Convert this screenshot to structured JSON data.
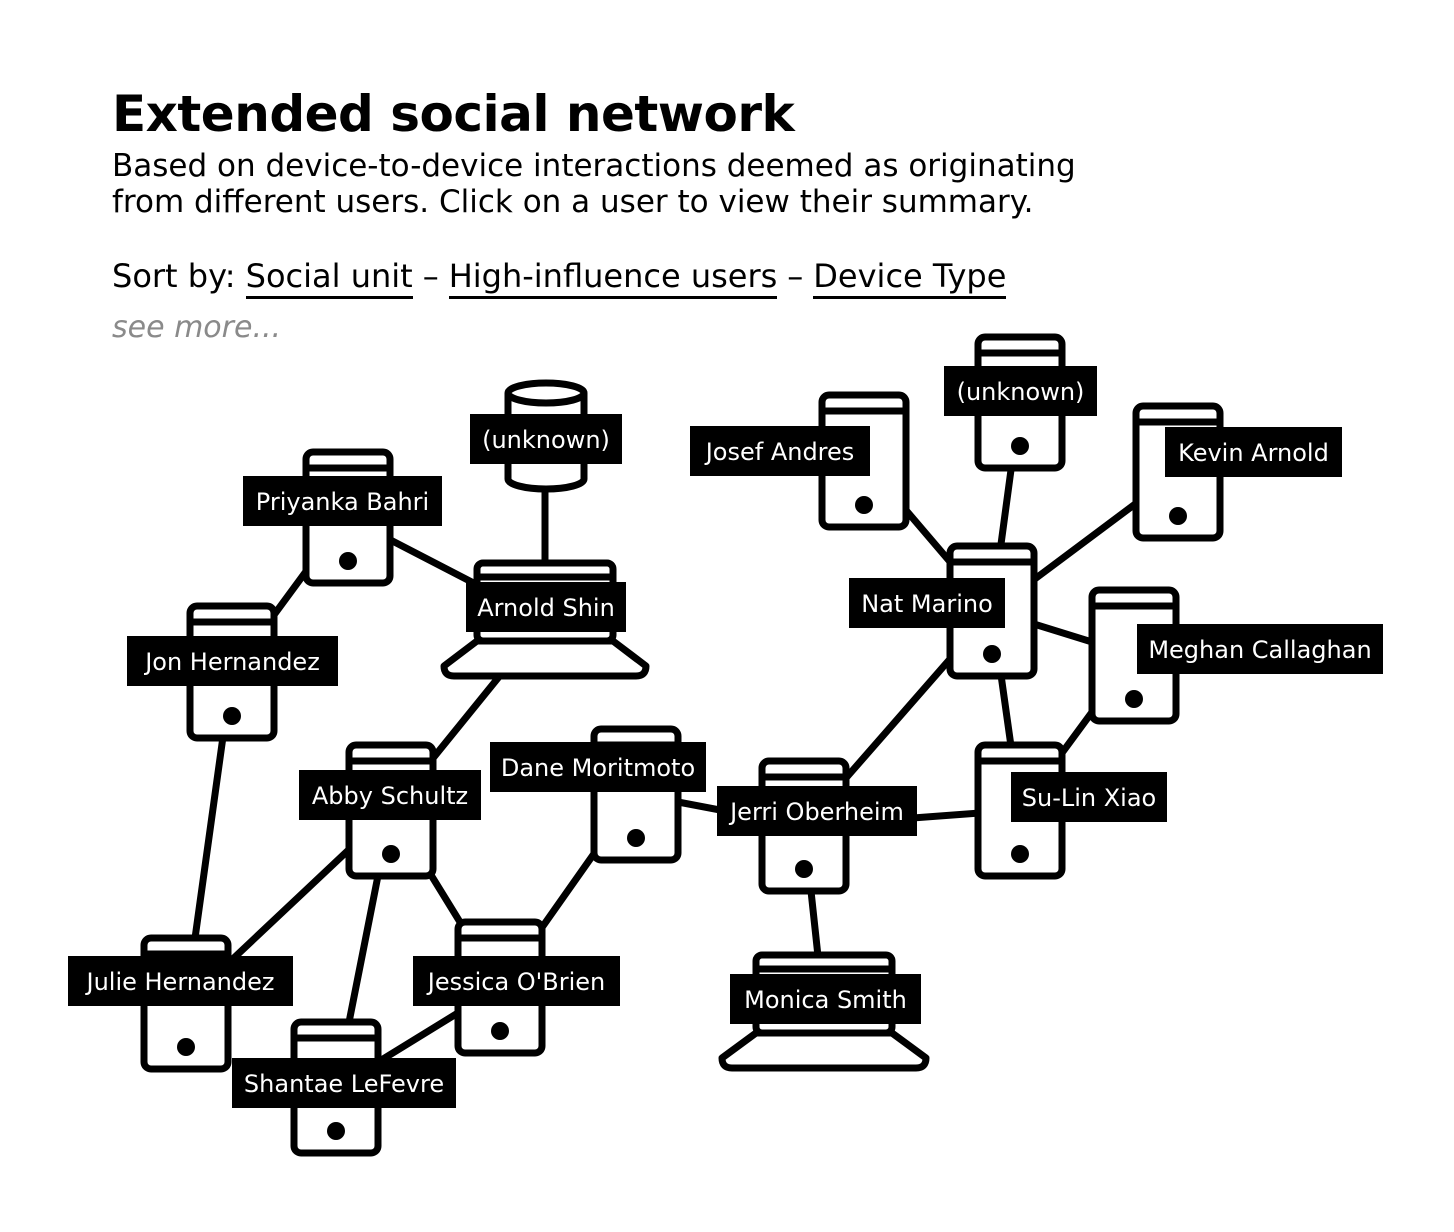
{
  "header": {
    "title": "Extended social network",
    "subtitle_line1": "Based on device-to-device interactions deemed as originating",
    "subtitle_line2": "from different users. Click on a user to view their summary."
  },
  "sort": {
    "prefix": "Sort by:",
    "options": [
      "Social unit",
      "High-influence users",
      "Device Type"
    ],
    "separator": "–",
    "see_more": "see more..."
  },
  "nodes": [
    {
      "id": "unknown-db",
      "label": "(unknown)",
      "device": "database-icon"
    },
    {
      "id": "priyanka-bahri",
      "label": "Priyanka Bahri",
      "device": "phone-icon"
    },
    {
      "id": "arnold-shin",
      "label": "Arnold Shin",
      "device": "laptop-icon"
    },
    {
      "id": "jon-hernandez",
      "label": "Jon Hernandez",
      "device": "phone-icon"
    },
    {
      "id": "abby-schultz",
      "label": "Abby Schultz",
      "device": "phone-icon"
    },
    {
      "id": "dane-moritmoto",
      "label": "Dane Moritmoto",
      "device": "phone-icon"
    },
    {
      "id": "julie-hernandez",
      "label": "Julie Hernandez",
      "device": "phone-icon"
    },
    {
      "id": "jessica-obrien",
      "label": "Jessica O'Brien",
      "device": "phone-icon"
    },
    {
      "id": "shantae-lefevre",
      "label": "Shantae LeFevre",
      "device": "phone-icon"
    },
    {
      "id": "josef-andres",
      "label": "Josef Andres",
      "device": "phone-icon"
    },
    {
      "id": "unknown-phone",
      "label": "(unknown)",
      "device": "phone-icon"
    },
    {
      "id": "kevin-arnold",
      "label": "Kevin Arnold",
      "device": "phone-icon"
    },
    {
      "id": "nat-marino",
      "label": "Nat Marino",
      "device": "phone-icon"
    },
    {
      "id": "meghan-callaghan",
      "label": "Meghan Callaghan",
      "device": "phone-icon"
    },
    {
      "id": "jerri-oberheim",
      "label": "Jerri Oberheim",
      "device": "phone-icon"
    },
    {
      "id": "su-lin-xiao",
      "label": "Su-Lin Xiao",
      "device": "phone-icon"
    },
    {
      "id": "monica-smith",
      "label": "Monica Smith",
      "device": "laptop-icon"
    }
  ],
  "edges": [
    [
      "unknown-db",
      "arnold-shin"
    ],
    [
      "priyanka-bahri",
      "arnold-shin"
    ],
    [
      "priyanka-bahri",
      "jon-hernandez"
    ],
    [
      "arnold-shin",
      "abby-schultz"
    ],
    [
      "jon-hernandez",
      "julie-hernandez"
    ],
    [
      "abby-schultz",
      "julie-hernandez"
    ],
    [
      "abby-schultz",
      "shantae-lefevre"
    ],
    [
      "abby-schultz",
      "jessica-obrien"
    ],
    [
      "dane-moritmoto",
      "jessica-obrien"
    ],
    [
      "dane-moritmoto",
      "jerri-oberheim"
    ],
    [
      "jessica-obrien",
      "shantae-lefevre"
    ],
    [
      "josef-andres",
      "nat-marino"
    ],
    [
      "unknown-phone",
      "nat-marino"
    ],
    [
      "kevin-arnold",
      "nat-marino"
    ],
    [
      "nat-marino",
      "meghan-callaghan"
    ],
    [
      "nat-marino",
      "jerri-oberheim"
    ],
    [
      "nat-marino",
      "su-lin-xiao"
    ],
    [
      "meghan-callaghan",
      "su-lin-xiao"
    ],
    [
      "jerri-oberheim",
      "su-lin-xiao"
    ],
    [
      "jerri-oberheim",
      "monica-smith"
    ]
  ]
}
